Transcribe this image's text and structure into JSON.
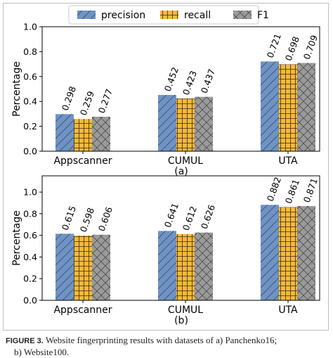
{
  "colors": {
    "precision": "#6f93c4",
    "recall": "#f5b93c",
    "f1": "#9a9a9a",
    "axis": "#000000"
  },
  "legend": [
    {
      "key": "precision",
      "label": "precision",
      "hatch": "diagonal"
    },
    {
      "key": "recall",
      "label": "recall",
      "hatch": "grid"
    },
    {
      "key": "f1",
      "label": "F1",
      "hatch": "cross"
    }
  ],
  "chart_data": [
    {
      "type": "bar",
      "panel_label": "(a)",
      "ylabel": "Percentage",
      "ylim": [
        0,
        1.0
      ],
      "yticks": [
        "0.0",
        "0.2",
        "0.4",
        "0.6",
        "0.8",
        "1.0"
      ],
      "categories": [
        "Appscanner",
        "CUMUL",
        "UTA"
      ],
      "series": [
        {
          "name": "precision",
          "values": [
            0.298,
            0.452,
            0.721
          ],
          "labels": [
            "0.298",
            "0.452",
            "0.721"
          ]
        },
        {
          "name": "recall",
          "values": [
            0.259,
            0.423,
            0.698
          ],
          "labels": [
            "0.259",
            "0.423",
            "0.698"
          ]
        },
        {
          "name": "F1",
          "values": [
            0.277,
            0.437,
            0.709
          ],
          "labels": [
            "0.277",
            "0.437",
            "0.709"
          ]
        }
      ],
      "legend_position": "top-center"
    },
    {
      "type": "bar",
      "panel_label": "(b)",
      "ylabel": "Percentage",
      "ylim": [
        0,
        1.15
      ],
      "yticks": [
        "0.0",
        "0.2",
        "0.4",
        "0.6",
        "0.8",
        "1.0"
      ],
      "categories": [
        "Appscanner",
        "CUMUL",
        "UTA"
      ],
      "series": [
        {
          "name": "precision",
          "values": [
            0.615,
            0.641,
            0.882
          ],
          "labels": [
            "0.615",
            "0.641",
            "0.882"
          ]
        },
        {
          "name": "recall",
          "values": [
            0.598,
            0.612,
            0.861
          ],
          "labels": [
            "0.598",
            "0.612",
            "0.861"
          ]
        },
        {
          "name": "F1",
          "values": [
            0.606,
            0.626,
            0.871
          ],
          "labels": [
            "0.606",
            "0.626",
            "0.871"
          ]
        }
      ]
    }
  ],
  "caption": {
    "figure_label": "FIGURE 3.",
    "line1": "Website fingerprinting results with datasets of a) Panchenko16;",
    "line2": "b) Website100."
  }
}
